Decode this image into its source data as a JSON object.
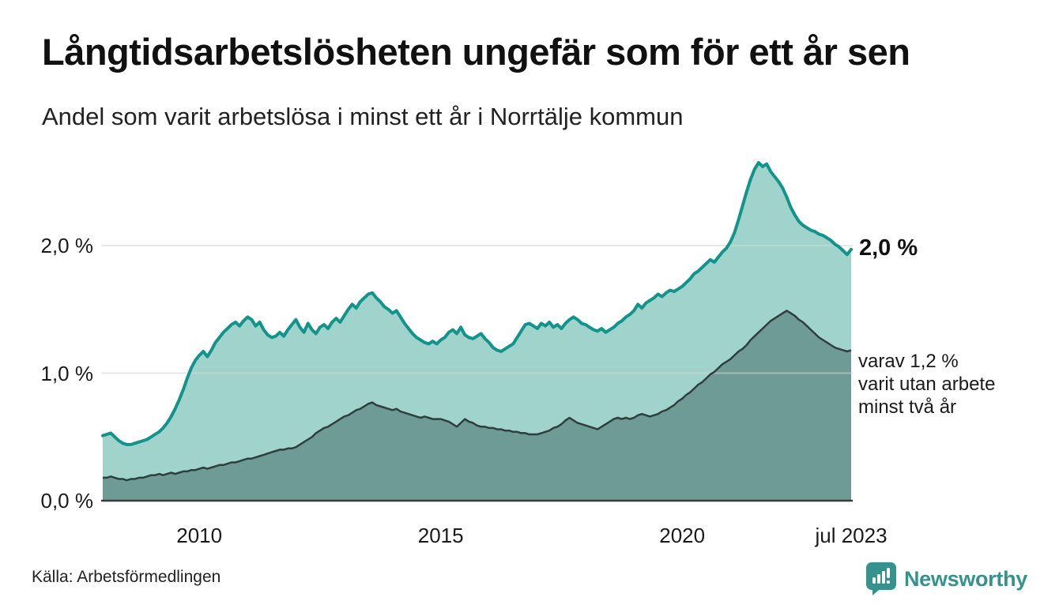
{
  "header": {
    "title": "Långtidsarbetslösheten ungefär som för ett år sen",
    "subtitle": "Andel som varit arbetslösa i minst ett år i Norrtälje kommun"
  },
  "chart_data": {
    "type": "area",
    "title": "Långtidsarbetslösheten ungefär som för ett år sen",
    "subtitle": "Andel som varit arbetslösa i minst ett år i Norrtälje kommun",
    "x_start": "2008-01",
    "x_end": "2023-07",
    "x_ticks": [
      {
        "year": 2010.0,
        "label": "2010"
      },
      {
        "year": 2015.0,
        "label": "2015"
      },
      {
        "year": 2020.0,
        "label": "2020"
      },
      {
        "year": 2023.5,
        "label": "jul 2023"
      }
    ],
    "y_ticks": [
      {
        "value": 0,
        "label": "0,0 %"
      },
      {
        "value": 1,
        "label": "1,0 %"
      },
      {
        "value": 2,
        "label": "2,0 %"
      }
    ],
    "ylim": [
      0,
      2.8
    ],
    "grid": "horizontal",
    "legend_position": "none",
    "colors": {
      "series1_line": "#12948b",
      "series1_fill": "#a0d3cc",
      "series2_line": "#2e3f3d",
      "series2_fill": "#6f9b96",
      "gridline": "#d5d5d5",
      "axis": "#3b3b3b"
    },
    "series": [
      {
        "name": "arbetslösa minst ett år",
        "unit": "%",
        "values": [
          0.51,
          0.52,
          0.53,
          0.5,
          0.47,
          0.45,
          0.44,
          0.44,
          0.45,
          0.46,
          0.47,
          0.48,
          0.5,
          0.52,
          0.54,
          0.57,
          0.61,
          0.66,
          0.72,
          0.79,
          0.87,
          0.96,
          1.04,
          1.1,
          1.14,
          1.17,
          1.13,
          1.18,
          1.24,
          1.28,
          1.32,
          1.35,
          1.38,
          1.4,
          1.37,
          1.41,
          1.44,
          1.42,
          1.37,
          1.4,
          1.34,
          1.3,
          1.28,
          1.29,
          1.32,
          1.29,
          1.34,
          1.38,
          1.42,
          1.36,
          1.32,
          1.39,
          1.34,
          1.31,
          1.36,
          1.38,
          1.35,
          1.4,
          1.43,
          1.4,
          1.45,
          1.5,
          1.54,
          1.51,
          1.56,
          1.59,
          1.62,
          1.63,
          1.59,
          1.56,
          1.52,
          1.5,
          1.47,
          1.49,
          1.44,
          1.39,
          1.35,
          1.31,
          1.28,
          1.26,
          1.24,
          1.23,
          1.25,
          1.23,
          1.26,
          1.28,
          1.32,
          1.34,
          1.31,
          1.36,
          1.3,
          1.28,
          1.27,
          1.29,
          1.31,
          1.27,
          1.24,
          1.2,
          1.18,
          1.17,
          1.19,
          1.21,
          1.23,
          1.28,
          1.33,
          1.38,
          1.39,
          1.37,
          1.35,
          1.39,
          1.37,
          1.4,
          1.36,
          1.38,
          1.35,
          1.39,
          1.42,
          1.44,
          1.42,
          1.39,
          1.38,
          1.36,
          1.34,
          1.33,
          1.35,
          1.32,
          1.34,
          1.36,
          1.39,
          1.41,
          1.44,
          1.46,
          1.49,
          1.54,
          1.51,
          1.55,
          1.57,
          1.59,
          1.62,
          1.6,
          1.63,
          1.65,
          1.64,
          1.66,
          1.68,
          1.71,
          1.74,
          1.78,
          1.8,
          1.83,
          1.86,
          1.89,
          1.87,
          1.91,
          1.95,
          1.98,
          2.03,
          2.1,
          2.2,
          2.31,
          2.42,
          2.52,
          2.6,
          2.65,
          2.62,
          2.64,
          2.58,
          2.54,
          2.5,
          2.45,
          2.38,
          2.3,
          2.24,
          2.19,
          2.16,
          2.14,
          2.12,
          2.11,
          2.09,
          2.08,
          2.06,
          2.04,
          2.01,
          1.99,
          1.96,
          1.93,
          1.97
        ]
      },
      {
        "name": "varav utan arbete minst två år",
        "unit": "%",
        "values": [
          0.18,
          0.18,
          0.19,
          0.18,
          0.17,
          0.17,
          0.16,
          0.17,
          0.17,
          0.18,
          0.18,
          0.19,
          0.2,
          0.2,
          0.21,
          0.2,
          0.21,
          0.22,
          0.21,
          0.22,
          0.23,
          0.23,
          0.24,
          0.24,
          0.25,
          0.26,
          0.25,
          0.26,
          0.27,
          0.28,
          0.28,
          0.29,
          0.3,
          0.3,
          0.31,
          0.32,
          0.33,
          0.33,
          0.34,
          0.35,
          0.36,
          0.37,
          0.38,
          0.39,
          0.4,
          0.4,
          0.41,
          0.41,
          0.42,
          0.44,
          0.46,
          0.48,
          0.5,
          0.53,
          0.55,
          0.57,
          0.58,
          0.6,
          0.62,
          0.64,
          0.66,
          0.67,
          0.69,
          0.71,
          0.72,
          0.74,
          0.76,
          0.77,
          0.75,
          0.74,
          0.73,
          0.72,
          0.71,
          0.72,
          0.7,
          0.69,
          0.68,
          0.67,
          0.66,
          0.65,
          0.66,
          0.65,
          0.64,
          0.64,
          0.64,
          0.63,
          0.62,
          0.6,
          0.58,
          0.61,
          0.64,
          0.62,
          0.61,
          0.59,
          0.58,
          0.58,
          0.57,
          0.57,
          0.56,
          0.56,
          0.55,
          0.55,
          0.54,
          0.54,
          0.53,
          0.53,
          0.52,
          0.52,
          0.52,
          0.53,
          0.54,
          0.55,
          0.57,
          0.58,
          0.6,
          0.63,
          0.65,
          0.63,
          0.61,
          0.6,
          0.59,
          0.58,
          0.57,
          0.56,
          0.58,
          0.6,
          0.62,
          0.64,
          0.65,
          0.64,
          0.65,
          0.64,
          0.65,
          0.67,
          0.68,
          0.67,
          0.66,
          0.67,
          0.68,
          0.7,
          0.71,
          0.73,
          0.75,
          0.78,
          0.8,
          0.83,
          0.85,
          0.88,
          0.91,
          0.93,
          0.96,
          0.99,
          1.01,
          1.04,
          1.07,
          1.09,
          1.11,
          1.14,
          1.17,
          1.19,
          1.22,
          1.26,
          1.29,
          1.32,
          1.35,
          1.38,
          1.41,
          1.43,
          1.45,
          1.47,
          1.49,
          1.47,
          1.45,
          1.42,
          1.4,
          1.37,
          1.34,
          1.31,
          1.28,
          1.26,
          1.24,
          1.22,
          1.2,
          1.19,
          1.18,
          1.17,
          1.18
        ]
      }
    ],
    "annotations": {
      "end_value_label": "2,0 %",
      "inner_label_lines": [
        "varav 1,2 %",
        "varit utan arbete",
        "minst två år"
      ]
    }
  },
  "footer": {
    "source": "Källa: Arbetsförmedlingen",
    "brand": "Newsworthy",
    "brand_color": "#36928c"
  }
}
